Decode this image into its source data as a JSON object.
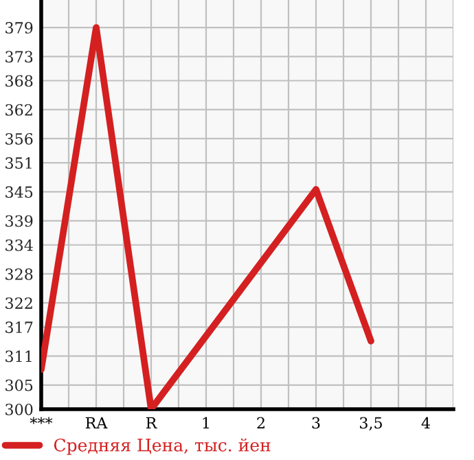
{
  "chart_data": {
    "type": "line",
    "categories": [
      "***",
      "RA",
      "R",
      "1",
      "2",
      "3",
      "3,5",
      "4"
    ],
    "series": [
      {
        "name": "Средняя Цена, тыс. йен",
        "color": "#d42020",
        "values": [
          308.2,
          379,
          300,
          null,
          null,
          345.5,
          314.1,
          null
        ]
      }
    ],
    "ylim": [
      300,
      384.7
    ],
    "yticks": [
      300,
      305,
      311,
      317,
      322,
      328,
      334,
      339,
      345,
      351,
      356,
      362,
      368,
      373,
      379
    ],
    "grid": true,
    "legend": "bottom left",
    "marker": "none",
    "line_style": "solid"
  }
}
